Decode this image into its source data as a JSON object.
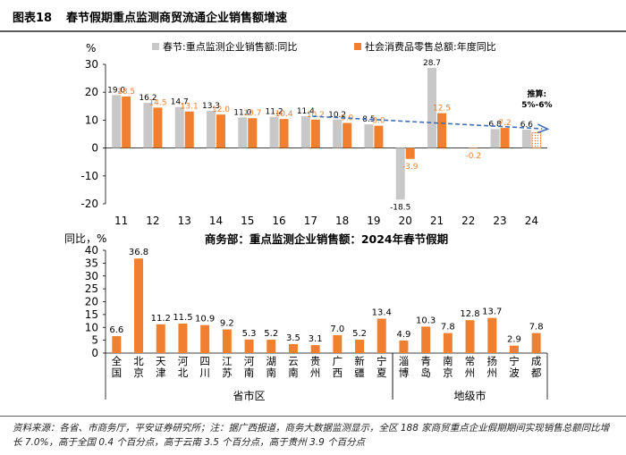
{
  "header": {
    "figure_no": "图表18",
    "title": "春节假期重点监测商贸流通企业销售额增速"
  },
  "colors": {
    "gray": "#c8c8c8",
    "orange": "#f08030",
    "trend": "#3f6fb6"
  },
  "chart_data": [
    {
      "type": "bar",
      "title": "",
      "ylabel": "%",
      "ylim": [
        -20,
        30
      ],
      "yticks": [
        -20,
        -10,
        0,
        10,
        20,
        30
      ],
      "categories": [
        "11",
        "12",
        "13",
        "14",
        "15",
        "16",
        "17",
        "18",
        "19",
        "20",
        "21",
        "22",
        "23",
        "24"
      ],
      "series": [
        {
          "name": "春节:重点监测企业销售额:同比",
          "values": [
            19.0,
            16.2,
            14.7,
            13.3,
            11.0,
            11.2,
            11.4,
            10.2,
            8.5,
            -18.5,
            28.7,
            null,
            6.8,
            6.6
          ],
          "labels": [
            "19.0",
            "16.2",
            "14.7",
            "13.3",
            "11.0",
            "11.2",
            "11.4",
            "10.2",
            "8.5",
            "-18.5",
            "28.7",
            "",
            "6.8",
            "6.6"
          ]
        },
        {
          "name": "社会消费品零售总额:年度同比",
          "values": [
            18.5,
            14.5,
            13.1,
            12.0,
            10.7,
            10.4,
            10.2,
            9.0,
            8.0,
            -3.9,
            12.5,
            -0.2,
            7.2,
            5.5
          ],
          "labels": [
            "18.5",
            "14.5",
            "13.1",
            "12.0",
            "10.7",
            "10.4",
            "10.2",
            "9.0",
            "8.0",
            "-3.9",
            "12.5",
            "-0.2",
            "7.2",
            ""
          ]
        }
      ],
      "legend": "top",
      "annotation": {
        "lines": [
          "推算:",
          "5%-6%"
        ],
        "category": "24",
        "value": 5.5
      },
      "trend_line": {
        "from": [
          "17",
          11.4
        ],
        "to": [
          "24",
          6.6
        ]
      }
    },
    {
      "type": "bar",
      "title": "商务部：重点监测企业销售额：2024年春节假期",
      "ylabel": "同比，%",
      "ylim": [
        0,
        40
      ],
      "yticks": [
        0,
        5,
        10,
        15,
        20,
        25,
        30,
        35,
        40
      ],
      "categories": [
        "全国",
        "北京",
        "天津",
        "河北",
        "四川",
        "江苏",
        "河南",
        "湖南",
        "云南",
        "贵州",
        "广西",
        "新疆",
        "宁夏",
        "淄博",
        "青岛",
        "南京",
        "常州",
        "扬州",
        "宁波",
        "成都"
      ],
      "values": [
        6.6,
        36.8,
        11.2,
        11.5,
        10.9,
        9.2,
        5.3,
        5.2,
        3.5,
        3.1,
        7.0,
        5.2,
        13.4,
        4.9,
        10.3,
        7.8,
        12.8,
        13.7,
        2.9,
        7.8
      ],
      "labels": [
        "6.6",
        "36.8",
        "11.2",
        "11.5",
        "10.9",
        "9.2",
        "5.3",
        "5.2",
        "3.5",
        "3.1",
        "7.0",
        "5.2",
        "13.4",
        "4.9",
        "10.3",
        "7.8",
        "12.8",
        "13.7",
        "2.9",
        "7.8"
      ],
      "group_labels": [
        {
          "text": "省市区",
          "from": "全国",
          "to": "宁夏"
        },
        {
          "text": "地级市",
          "from": "淄博",
          "to": "成都"
        }
      ]
    }
  ],
  "footer": {
    "line1": "资料来源：各省、市商务厅，平安证券研究所；注：据广西报道，商务大数据监测显示，全区 188 家商贸重点企业假期期间实现销售总额同比增",
    "line2": "长 7.0%，高于全国 0.4 个百分点，高于云南 3.5 个百分点，高于贵州 3.9 个百分点"
  }
}
